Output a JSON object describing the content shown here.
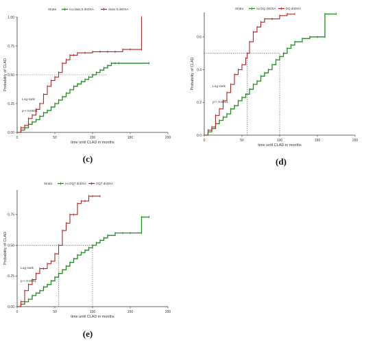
{
  "colors": {
    "green": "#1f8a1f",
    "red": "#b22222",
    "axis": "#333333",
    "ref": "#555555"
  },
  "chart_data": [
    {
      "type": "line",
      "panel_label": "(c)",
      "legend_title": "Strata",
      "legend_placement": "top-center",
      "xlabel": "time until CLAD in months",
      "ylabel": "Probability of CLAD",
      "xlim": [
        0,
        200
      ],
      "ylim": [
        0,
        1.0
      ],
      "x_ticks": [
        0,
        50,
        100,
        150,
        200
      ],
      "x_tick_labels": [
        "0",
        "50",
        "100",
        "150",
        "200"
      ],
      "y_ticks": [
        0,
        0.25,
        0.5,
        0.75,
        1.0
      ],
      "y_tick_labels": [
        "0.00",
        "0.25",
        "0.50",
        "0.75",
        "1.00"
      ],
      "annotations": [
        "Log-rank",
        "p < 0.0001"
      ],
      "reference_lines": [
        {
          "y": 0.5,
          "x_end": 120
        }
      ],
      "series": [
        {
          "name": "no class II dnDSA",
          "color": "#1f8a1f",
          "x": [
            0,
            5,
            10,
            15,
            20,
            25,
            30,
            35,
            40,
            45,
            50,
            55,
            60,
            65,
            70,
            75,
            80,
            85,
            90,
            95,
            100,
            105,
            110,
            115,
            120,
            125,
            130,
            135,
            175
          ],
          "y": [
            0,
            0.02,
            0.04,
            0.07,
            0.09,
            0.11,
            0.14,
            0.17,
            0.19,
            0.22,
            0.25,
            0.28,
            0.31,
            0.34,
            0.37,
            0.4,
            0.42,
            0.44,
            0.46,
            0.48,
            0.5,
            0.52,
            0.54,
            0.56,
            0.58,
            0.6,
            0.6,
            0.6,
            0.6
          ]
        },
        {
          "name": "class II dnDSA",
          "color": "#b22222",
          "x": [
            0,
            5,
            10,
            15,
            20,
            25,
            30,
            35,
            40,
            45,
            50,
            55,
            60,
            65,
            70,
            75,
            80,
            90,
            100,
            110,
            120,
            130,
            140,
            150,
            165,
            165
          ],
          "y": [
            0,
            0.04,
            0.06,
            0.12,
            0.15,
            0.2,
            0.25,
            0.33,
            0.4,
            0.45,
            0.48,
            0.52,
            0.6,
            0.63,
            0.67,
            0.67,
            0.69,
            0.69,
            0.7,
            0.7,
            0.7,
            0.7,
            0.72,
            0.72,
            0.72,
            1.0
          ]
        }
      ]
    },
    {
      "type": "line",
      "panel_label": "(d)",
      "legend_title": "Strata",
      "legend_placement": "top-center",
      "xlabel": "time until CLAD in months",
      "ylabel": "Probability of CLAD",
      "xlim": [
        0,
        200
      ],
      "ylim": [
        0,
        0.75
      ],
      "x_ticks": [
        0,
        50,
        100,
        150,
        200
      ],
      "x_tick_labels": [
        "0",
        "50",
        "100",
        "150",
        "200"
      ],
      "y_ticks": [
        0,
        0.2,
        0.4,
        0.6
      ],
      "y_tick_labels": [
        "0.0",
        "0.2",
        "0.4",
        "0.6"
      ],
      "annotations": [
        "Log-rank",
        "p < 0.0001"
      ],
      "reference_lines": [
        {
          "y": 0.5,
          "x_end": 100
        },
        {
          "x": 57,
          "y_end": 0.5
        },
        {
          "x": 100,
          "y_end": 0.5
        }
      ],
      "series": [
        {
          "name": "no DQ dnDSA",
          "color": "#1f8a1f",
          "x": [
            0,
            5,
            10,
            15,
            20,
            25,
            30,
            35,
            40,
            45,
            50,
            55,
            60,
            65,
            70,
            75,
            80,
            85,
            90,
            95,
            100,
            105,
            110,
            115,
            120,
            130,
            140,
            150,
            160,
            160,
            175
          ],
          "y": [
            0,
            0.02,
            0.04,
            0.07,
            0.09,
            0.11,
            0.13,
            0.16,
            0.18,
            0.21,
            0.23,
            0.25,
            0.28,
            0.31,
            0.33,
            0.36,
            0.38,
            0.4,
            0.43,
            0.46,
            0.48,
            0.5,
            0.53,
            0.55,
            0.57,
            0.59,
            0.6,
            0.6,
            0.6,
            0.74,
            0.74
          ]
        },
        {
          "name": "DQ dnDSA",
          "color": "#b22222",
          "x": [
            0,
            5,
            10,
            15,
            20,
            25,
            30,
            35,
            40,
            45,
            50,
            55,
            57,
            60,
            65,
            70,
            75,
            80,
            90,
            100,
            110,
            120
          ],
          "y": [
            0,
            0.03,
            0.05,
            0.12,
            0.16,
            0.21,
            0.26,
            0.31,
            0.37,
            0.4,
            0.43,
            0.47,
            0.5,
            0.57,
            0.63,
            0.66,
            0.69,
            0.71,
            0.71,
            0.73,
            0.74,
            0.74
          ]
        }
      ]
    },
    {
      "type": "line",
      "panel_label": "(e)",
      "legend_title": "Strata",
      "legend_placement": "top-center",
      "xlabel": "time until CLAD in months",
      "ylabel": "Probability of CLAD",
      "xlim": [
        0,
        200
      ],
      "ylim": [
        0,
        0.95
      ],
      "x_ticks": [
        0,
        50,
        100,
        150,
        200
      ],
      "x_tick_labels": [
        "0",
        "50",
        "100",
        "150",
        "200"
      ],
      "y_ticks": [
        0,
        0.25,
        0.5,
        0.75
      ],
      "y_tick_labels": [
        "0.00",
        "0.25",
        "0.50",
        "0.75"
      ],
      "annotations": [
        "Log-rank",
        "p < 0.0001"
      ],
      "reference_lines": [
        {
          "y": 0.5,
          "x_end": 100
        },
        {
          "x": 55,
          "y_end": 0.5
        },
        {
          "x": 100,
          "y_end": 0.5
        }
      ],
      "series": [
        {
          "name": "no DQ7 dnDSA",
          "color": "#1f8a1f",
          "x": [
            0,
            5,
            10,
            15,
            20,
            25,
            30,
            35,
            40,
            45,
            50,
            55,
            60,
            65,
            70,
            75,
            80,
            85,
            90,
            95,
            100,
            105,
            110,
            115,
            120,
            130,
            140,
            150,
            165,
            165,
            175
          ],
          "y": [
            0,
            0.02,
            0.04,
            0.06,
            0.09,
            0.11,
            0.13,
            0.16,
            0.18,
            0.21,
            0.24,
            0.27,
            0.3,
            0.33,
            0.36,
            0.39,
            0.42,
            0.44,
            0.46,
            0.48,
            0.5,
            0.52,
            0.54,
            0.56,
            0.58,
            0.6,
            0.6,
            0.6,
            0.6,
            0.73,
            0.73
          ]
        },
        {
          "name": "DQ7 dnDSA",
          "color": "#b22222",
          "x": [
            0,
            5,
            10,
            15,
            20,
            25,
            30,
            35,
            40,
            45,
            50,
            55,
            60,
            65,
            70,
            75,
            80,
            85,
            90,
            95,
            100,
            110
          ],
          "y": [
            0,
            0.04,
            0.13,
            0.18,
            0.22,
            0.27,
            0.31,
            0.31,
            0.35,
            0.37,
            0.43,
            0.5,
            0.62,
            0.68,
            0.75,
            0.75,
            0.84,
            0.86,
            0.86,
            0.9,
            0.9,
            0.9
          ]
        }
      ]
    }
  ]
}
